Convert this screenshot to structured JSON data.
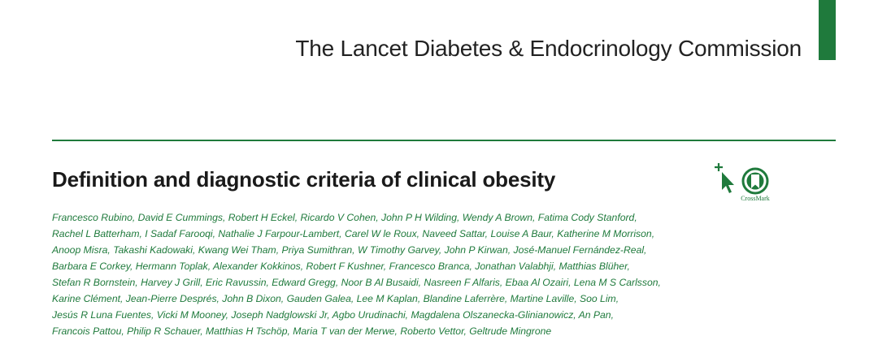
{
  "journal": {
    "title": "The Lancet Diabetes & Endocrinology Commission",
    "accent_color": "#1f7a3c"
  },
  "article": {
    "title": "Definition and diagnostic criteria of clinical obesity"
  },
  "badges": {
    "cursor_icon": "cursor-plus-icon",
    "crossmark_icon": "crossmark-icon",
    "crossmark_label": "CrossMark"
  },
  "authors": {
    "lines": [
      "Francesco Rubino, David E Cummings, Robert H Eckel, Ricardo V Cohen, John P H Wilding, Wendy A Brown, Fatima Cody Stanford,",
      "Rachel L Batterham, I Sadaf Farooqi, Nathalie J Farpour-Lambert, Carel W le Roux, Naveed Sattar, Louise A Baur, Katherine M Morrison,",
      "Anoop Misra, Takashi Kadowaki, Kwang Wei Tham, Priya Sumithran, W Timothy Garvey, John P Kirwan, José-Manuel Fernández-Real,",
      "Barbara E Corkey, Hermann Toplak, Alexander Kokkinos, Robert F Kushner, Francesco Branca, Jonathan Valabhji, Matthias Blüher,",
      "Stefan R Bornstein, Harvey J Grill, Eric Ravussin, Edward Gregg, Noor B Al Busaidi, Nasreen F Alfaris, Ebaa Al Ozairi, Lena M S Carlsson,",
      "Karine Clément, Jean-Pierre Després, John B Dixon, Gauden Galea, Lee M Kaplan, Blandine Laferrère, Martine Laville, Soo Lim,",
      "Jesús R Luna Fuentes, Vicki M Mooney, Joseph Nadglowski Jr, Agbo Urudinachi, Magdalena Olszanecka-Glinianowicz, An Pan,",
      "Francois Pattou, Philip R Schauer, Matthias H Tschöp, Maria T van der Merwe, Roberto Vettor, Geltrude Mingrone"
    ]
  }
}
